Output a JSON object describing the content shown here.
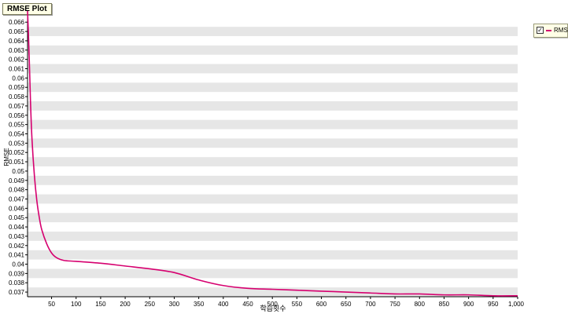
{
  "chart_data": {
    "type": "line",
    "title": "RMSE Plot",
    "xlabel": "학습횟수",
    "ylabel": "RMSE",
    "xlim": [
      1,
      1000
    ],
    "ylim": [
      0.0365,
      0.0672
    ],
    "x_ticks": [
      50,
      100,
      150,
      200,
      250,
      300,
      350,
      400,
      450,
      500,
      550,
      600,
      650,
      700,
      750,
      800,
      850,
      900,
      950,
      1000
    ],
    "x_tick_labels": [
      "50",
      "100",
      "150",
      "200",
      "250",
      "300",
      "350",
      "400",
      "450",
      "500",
      "550",
      "600",
      "650",
      "700",
      "750",
      "800",
      "850",
      "900",
      "950",
      "1,000"
    ],
    "y_ticks": [
      0.037,
      0.038,
      0.039,
      0.04,
      0.041,
      0.042,
      0.043,
      0.044,
      0.045,
      0.046,
      0.047,
      0.048,
      0.049,
      0.05,
      0.051,
      0.052,
      0.053,
      0.054,
      0.055,
      0.056,
      0.057,
      0.058,
      0.059,
      0.06,
      0.061,
      0.062,
      0.063,
      0.064,
      0.065,
      0.066
    ],
    "y_tick_labels": [
      "0.037",
      "0.038",
      "0.039",
      "0.04",
      "0.041",
      "0.042",
      "0.043",
      "0.044",
      "0.045",
      "0.046",
      "0.047",
      "0.048",
      "0.049",
      "0.05",
      "0.051",
      "0.052",
      "0.053",
      "0.054",
      "0.055",
      "0.056",
      "0.057",
      "0.058",
      "0.059",
      "0.06",
      "0.061",
      "0.062",
      "0.063",
      "0.064",
      "0.065",
      "0.066"
    ],
    "grid": "horizontal alternating bands",
    "legend_position": "top-right",
    "series": [
      {
        "name": "RMSE",
        "color": "#d6006f",
        "x": [
          1,
          3,
          5,
          7,
          10,
          15,
          20,
          25,
          30,
          40,
          50,
          60,
          75,
          100,
          150,
          200,
          250,
          300,
          350,
          400,
          450,
          500,
          550,
          600,
          650,
          700,
          750,
          800,
          850,
          900,
          950,
          1000
        ],
        "y": [
          0.0672,
          0.0645,
          0.0612,
          0.0575,
          0.0535,
          0.0495,
          0.0468,
          0.045,
          0.0437,
          0.0422,
          0.0412,
          0.0407,
          0.0404,
          0.0403,
          0.0401,
          0.0398,
          0.0395,
          0.0391,
          0.0383,
          0.0377,
          0.0374,
          0.0373,
          0.0372,
          0.0371,
          0.037,
          0.0369,
          0.0368,
          0.0368,
          0.0367,
          0.0367,
          0.0366,
          0.0366
        ]
      }
    ]
  },
  "legend": {
    "checkbox_mark": "✓",
    "label": "RMSE"
  }
}
